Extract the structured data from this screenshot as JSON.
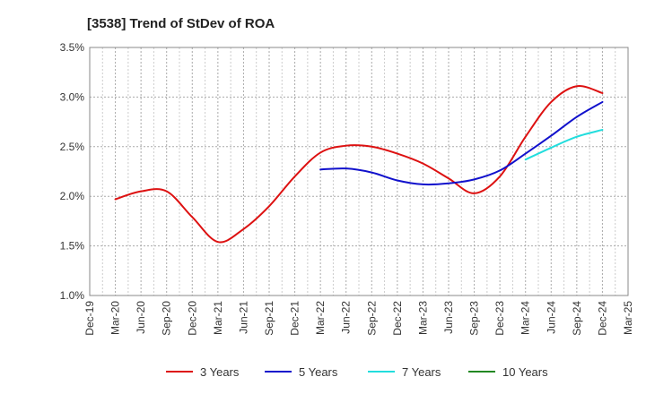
{
  "chart_data": {
    "type": "line",
    "title": "[3538]  Trend of StDev of ROA",
    "xlabel": "",
    "ylabel": "",
    "x": [
      "Dec-19",
      "Mar-20",
      "Jun-20",
      "Sep-20",
      "Dec-20",
      "Mar-21",
      "Jun-21",
      "Sep-21",
      "Dec-21",
      "Mar-22",
      "Jun-22",
      "Sep-22",
      "Dec-22",
      "Mar-23",
      "Jun-23",
      "Sep-23",
      "Dec-23",
      "Mar-24",
      "Jun-24",
      "Sep-24",
      "Dec-24",
      "Mar-25"
    ],
    "ylim": [
      1.0,
      3.5
    ],
    "yticks": [
      "1.0%",
      "1.5%",
      "2.0%",
      "2.5%",
      "3.0%",
      "3.5%"
    ],
    "ytick_values": [
      1.0,
      1.5,
      2.0,
      2.5,
      3.0,
      3.5
    ],
    "grid": true,
    "legend_position": "bottom",
    "series": [
      {
        "name": "3 Years",
        "color": "#dd1111",
        "values": [
          null,
          1.97,
          2.05,
          2.05,
          1.79,
          1.54,
          1.67,
          1.9,
          2.2,
          2.44,
          2.51,
          2.5,
          2.43,
          2.33,
          2.18,
          2.03,
          2.2,
          2.6,
          2.95,
          3.11,
          3.04,
          null
        ]
      },
      {
        "name": "5 Years",
        "color": "#1111cc",
        "values": [
          null,
          null,
          null,
          null,
          null,
          null,
          null,
          null,
          null,
          2.27,
          2.28,
          2.24,
          2.16,
          2.12,
          2.13,
          2.17,
          2.26,
          2.43,
          2.61,
          2.8,
          2.95,
          null
        ]
      },
      {
        "name": "7 Years",
        "color": "#22dddd",
        "values": [
          null,
          null,
          null,
          null,
          null,
          null,
          null,
          null,
          null,
          null,
          null,
          null,
          null,
          null,
          null,
          null,
          null,
          2.37,
          2.49,
          2.6,
          2.67,
          null
        ]
      },
      {
        "name": "10 Years",
        "color": "#228822",
        "values": [
          null,
          null,
          null,
          null,
          null,
          null,
          null,
          null,
          null,
          null,
          null,
          null,
          null,
          null,
          null,
          null,
          null,
          null,
          null,
          null,
          null,
          null
        ]
      }
    ]
  }
}
